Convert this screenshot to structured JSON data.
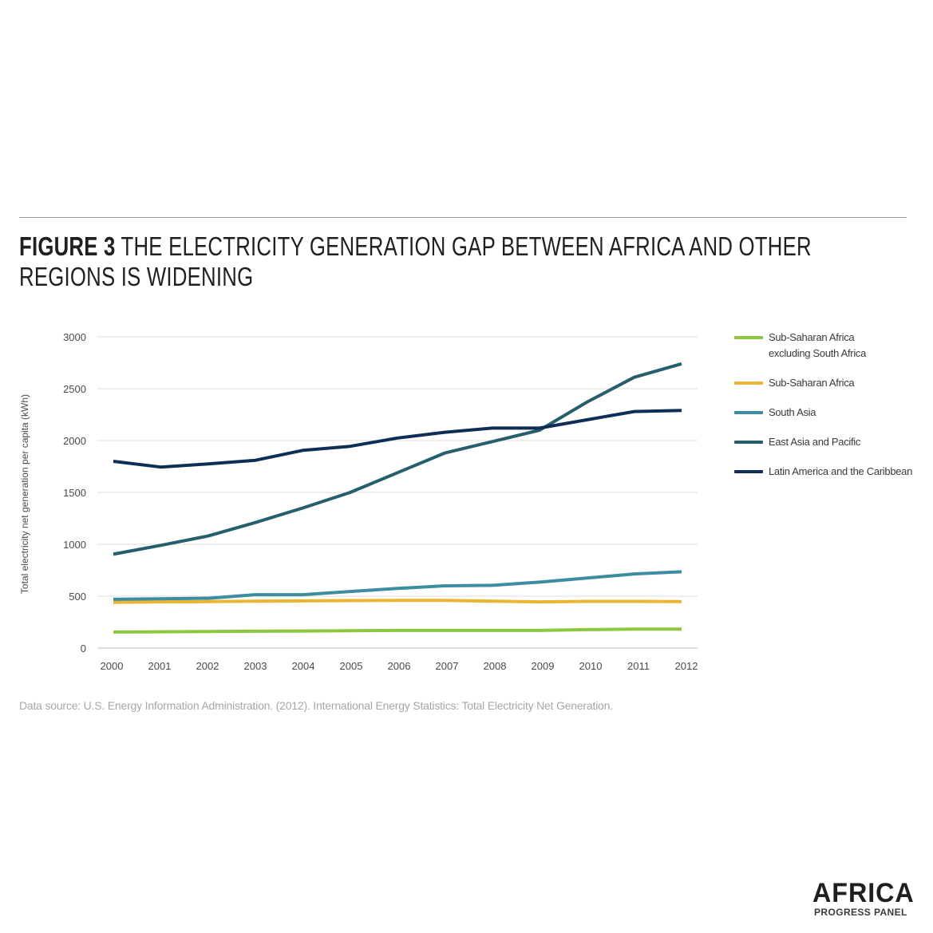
{
  "figure": {
    "number": "FIGURE 3",
    "title": "THE ELECTRICITY GENERATION GAP BETWEEN AFRICA AND OTHER REGIONS IS WIDENING"
  },
  "source_note": "Data source: U.S. Energy Information Administration. (2012). International Energy Statistics: Total Electricity Net Generation.",
  "logo": {
    "word": "AFRICA",
    "sub": "PROGRESS PANEL"
  },
  "chart_data": {
    "type": "line",
    "title": "",
    "xlabel": "",
    "ylabel": "Total electricity net generation per capita (kWh)",
    "x": [
      "2000",
      "2001",
      "2002",
      "2003",
      "2004",
      "2005",
      "2006",
      "2007",
      "2008",
      "2009",
      "2010",
      "2011",
      "2012"
    ],
    "ylim": [
      0,
      3000
    ],
    "yticks": [
      0,
      500,
      1000,
      1500,
      2000,
      2500,
      3000
    ],
    "grid": true,
    "legend_position": "right",
    "series": [
      {
        "name": "Sub-Saharan Africa\nexcluding South Africa",
        "color": "#8dc63f",
        "values": [
          155,
          157,
          160,
          162,
          165,
          167,
          170,
          170,
          170,
          170,
          178,
          182,
          182
        ]
      },
      {
        "name": "Sub-Saharan Africa",
        "color": "#e8b632",
        "values": [
          440,
          445,
          448,
          452,
          455,
          458,
          460,
          460,
          452,
          445,
          450,
          450,
          448
        ]
      },
      {
        "name": "South Asia",
        "color": "#3c8d9f",
        "values": [
          470,
          475,
          480,
          515,
          515,
          545,
          575,
          600,
          605,
          635,
          675,
          715,
          735
        ]
      },
      {
        "name": "East Asia and Pacific",
        "color": "#275e6e",
        "values": [
          905,
          990,
          1080,
          1210,
          1350,
          1500,
          1690,
          1880,
          1990,
          2100,
          2370,
          2610,
          2740
        ]
      },
      {
        "name": "Latin America and the Caribbean",
        "color": "#102e55",
        "values": [
          1800,
          1745,
          1775,
          1810,
          1905,
          1945,
          2025,
          2080,
          2120,
          2120,
          2200,
          2280,
          2290
        ]
      }
    ]
  }
}
